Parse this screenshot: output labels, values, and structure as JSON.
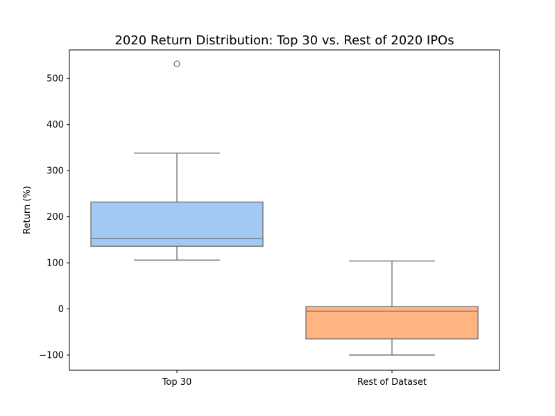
{
  "chart_data": {
    "type": "box",
    "title": "2020 Return Distribution: Top 30 vs. Rest of 2020 IPOs",
    "xlabel": "",
    "ylabel": "Return (%)",
    "ylim": [
      -133,
      562
    ],
    "yticks": [
      -100,
      0,
      100,
      200,
      300,
      400,
      500
    ],
    "grid": false,
    "legend": "none",
    "categories": [
      "Top 30",
      "Rest of Dataset"
    ],
    "boxes": [
      {
        "category": "Top 30",
        "whisker_low": 106,
        "q1": 136,
        "median": 153,
        "q3": 232,
        "whisker_high": 338,
        "outliers": [
          532
        ],
        "color": "#a1c9f4"
      },
      {
        "category": "Rest of Dataset",
        "whisker_low": -100,
        "q1": -65,
        "median": -5,
        "q3": 5,
        "whisker_high": 104,
        "outliers": [],
        "color": "#ffb482"
      }
    ],
    "line_color": "#6e6e6e"
  }
}
